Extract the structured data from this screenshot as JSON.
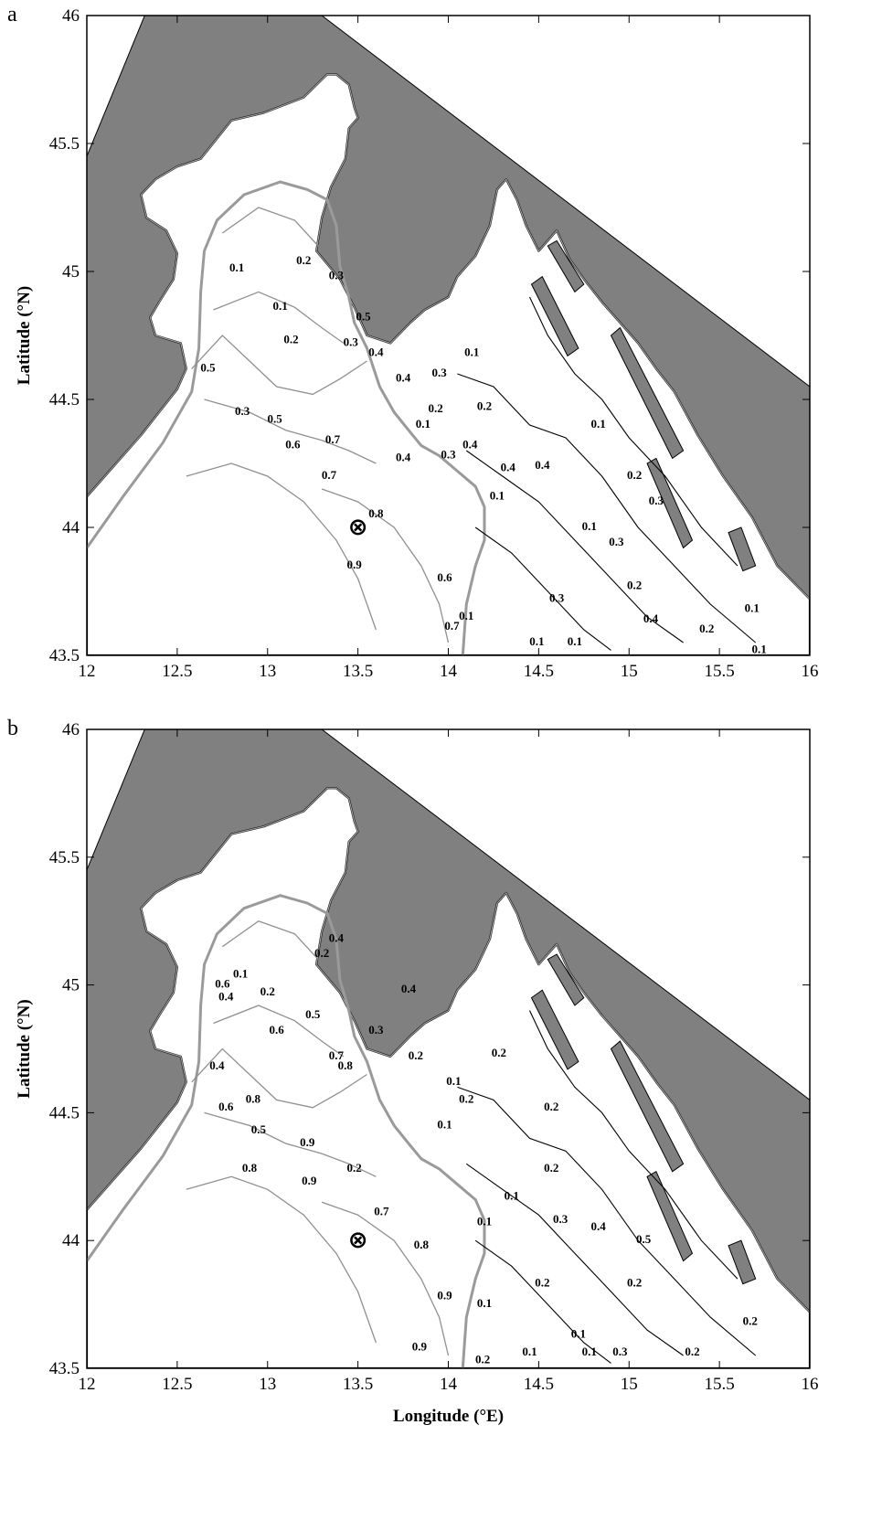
{
  "figure": {
    "panels": [
      {
        "letter": "a",
        "xlabel": "",
        "ylabel": "Latitude (°N)",
        "contour_labels": [
          {
            "text": "0.1",
            "lon": 12.83,
            "lat": 45.01
          },
          {
            "text": "0.1",
            "lon": 13.07,
            "lat": 44.86
          },
          {
            "text": "0.2",
            "lon": 13.2,
            "lat": 45.04
          },
          {
            "text": "0.2",
            "lon": 13.13,
            "lat": 44.73
          },
          {
            "text": "0.3",
            "lon": 13.46,
            "lat": 44.72
          },
          {
            "text": "0.4",
            "lon": 13.6,
            "lat": 44.68
          },
          {
            "text": "0.5",
            "lon": 13.53,
            "lat": 44.82
          },
          {
            "text": "0.3",
            "lon": 13.38,
            "lat": 44.98
          },
          {
            "text": "0.5",
            "lon": 12.67,
            "lat": 44.62
          },
          {
            "text": "0.3",
            "lon": 12.86,
            "lat": 44.45
          },
          {
            "text": "0.5",
            "lon": 13.04,
            "lat": 44.42
          },
          {
            "text": "0.6",
            "lon": 13.14,
            "lat": 44.32
          },
          {
            "text": "0.7",
            "lon": 13.36,
            "lat": 44.34
          },
          {
            "text": "0.7",
            "lon": 13.34,
            "lat": 44.2
          },
          {
            "text": "0.8",
            "lon": 13.6,
            "lat": 44.05
          },
          {
            "text": "0.9",
            "lon": 13.48,
            "lat": 43.85
          },
          {
            "text": "0.6",
            "lon": 13.98,
            "lat": 43.8
          },
          {
            "text": "0.7",
            "lon": 14.02,
            "lat": 43.61
          },
          {
            "text": "0.4",
            "lon": 13.75,
            "lat": 44.58
          },
          {
            "text": "0.2",
            "lon": 13.93,
            "lat": 44.46
          },
          {
            "text": "0.1",
            "lon": 13.86,
            "lat": 44.4
          },
          {
            "text": "0.3",
            "lon": 13.95,
            "lat": 44.6
          },
          {
            "text": "0.1",
            "lon": 14.13,
            "lat": 44.68
          },
          {
            "text": "0.2",
            "lon": 14.2,
            "lat": 44.47
          },
          {
            "text": "0.4",
            "lon": 14.12,
            "lat": 44.32
          },
          {
            "text": "0.3",
            "lon": 14.0,
            "lat": 44.28
          },
          {
            "text": "0.4",
            "lon": 13.75,
            "lat": 44.27
          },
          {
            "text": "0.1",
            "lon": 14.27,
            "lat": 44.12
          },
          {
            "text": "0.4",
            "lon": 14.33,
            "lat": 44.23
          },
          {
            "text": "0.4",
            "lon": 14.52,
            "lat": 44.24
          },
          {
            "text": "0.1",
            "lon": 14.83,
            "lat": 44.4
          },
          {
            "text": "0.2",
            "lon": 15.03,
            "lat": 44.2
          },
          {
            "text": "0.3",
            "lon": 15.15,
            "lat": 44.1
          },
          {
            "text": "0.1",
            "lon": 14.78,
            "lat": 44.0
          },
          {
            "text": "0.3",
            "lon": 14.93,
            "lat": 43.94
          },
          {
            "text": "0.2",
            "lon": 15.03,
            "lat": 43.77
          },
          {
            "text": "0.3",
            "lon": 14.6,
            "lat": 43.72
          },
          {
            "text": "0.1",
            "lon": 14.1,
            "lat": 43.65
          },
          {
            "text": "0.1",
            "lon": 14.49,
            "lat": 43.55
          },
          {
            "text": "0.1",
            "lon": 14.7,
            "lat": 43.55
          },
          {
            "text": "0.4",
            "lon": 15.12,
            "lat": 43.64
          },
          {
            "text": "0.2",
            "lon": 15.43,
            "lat": 43.6
          },
          {
            "text": "0.1",
            "lon": 15.68,
            "lat": 43.68
          },
          {
            "text": "0.1",
            "lon": 15.72,
            "lat": 43.52
          }
        ]
      },
      {
        "letter": "b",
        "xlabel": "Longitude (°E)",
        "ylabel": "Latitude (°N)",
        "contour_labels": [
          {
            "text": "0.2",
            "lon": 13.3,
            "lat": 45.12
          },
          {
            "text": "0.4",
            "lon": 13.38,
            "lat": 45.18
          },
          {
            "text": "0.1",
            "lon": 12.85,
            "lat": 45.04
          },
          {
            "text": "0.6",
            "lon": 12.75,
            "lat": 45.0
          },
          {
            "text": "0.4",
            "lon": 12.77,
            "lat": 44.95
          },
          {
            "text": "0.2",
            "lon": 13.0,
            "lat": 44.97
          },
          {
            "text": "0.5",
            "lon": 13.25,
            "lat": 44.88
          },
          {
            "text": "0.6",
            "lon": 13.05,
            "lat": 44.82
          },
          {
            "text": "0.4",
            "lon": 13.78,
            "lat": 44.98
          },
          {
            "text": "0.3",
            "lon": 13.6,
            "lat": 44.82
          },
          {
            "text": "0.2",
            "lon": 13.82,
            "lat": 44.72
          },
          {
            "text": "0.1",
            "lon": 14.03,
            "lat": 44.62
          },
          {
            "text": "0.2",
            "lon": 14.1,
            "lat": 44.55
          },
          {
            "text": "0.2",
            "lon": 14.28,
            "lat": 44.73
          },
          {
            "text": "0.7",
            "lon": 13.38,
            "lat": 44.72
          },
          {
            "text": "0.8",
            "lon": 13.43,
            "lat": 44.68
          },
          {
            "text": "0.8",
            "lon": 12.92,
            "lat": 44.55
          },
          {
            "text": "0.6",
            "lon": 12.77,
            "lat": 44.52
          },
          {
            "text": "0.4",
            "lon": 12.72,
            "lat": 44.68
          },
          {
            "text": "0.5",
            "lon": 12.95,
            "lat": 44.43
          },
          {
            "text": "0.9",
            "lon": 13.22,
            "lat": 44.38
          },
          {
            "text": "0.8",
            "lon": 12.9,
            "lat": 44.28
          },
          {
            "text": "0.9",
            "lon": 13.23,
            "lat": 44.23
          },
          {
            "text": "0.7",
            "lon": 13.63,
            "lat": 44.11
          },
          {
            "text": "0.8",
            "lon": 13.85,
            "lat": 43.98
          },
          {
            "text": "0.9",
            "lon": 13.98,
            "lat": 43.78
          },
          {
            "text": "0.9",
            "lon": 13.84,
            "lat": 43.58
          },
          {
            "text": "0.2",
            "lon": 13.48,
            "lat": 44.28
          },
          {
            "text": "0.1",
            "lon": 13.98,
            "lat": 44.45
          },
          {
            "text": "0.2",
            "lon": 14.57,
            "lat": 44.52
          },
          {
            "text": "0.2",
            "lon": 14.57,
            "lat": 44.28
          },
          {
            "text": "0.1",
            "lon": 14.35,
            "lat": 44.17
          },
          {
            "text": "0.1",
            "lon": 14.2,
            "lat": 44.07
          },
          {
            "text": "0.3",
            "lon": 14.62,
            "lat": 44.08
          },
          {
            "text": "0.4",
            "lon": 14.83,
            "lat": 44.05
          },
          {
            "text": "0.5",
            "lon": 15.08,
            "lat": 44.0
          },
          {
            "text": "0.2",
            "lon": 14.52,
            "lat": 43.83
          },
          {
            "text": "0.1",
            "lon": 14.2,
            "lat": 43.75
          },
          {
            "text": "0.2",
            "lon": 15.03,
            "lat": 43.83
          },
          {
            "text": "0.1",
            "lon": 14.72,
            "lat": 43.63
          },
          {
            "text": "0.1",
            "lon": 14.45,
            "lat": 43.56
          },
          {
            "text": "0.1",
            "lon": 14.78,
            "lat": 43.56
          },
          {
            "text": "0.2",
            "lon": 14.19,
            "lat": 43.53
          },
          {
            "text": "0.3",
            "lon": 14.95,
            "lat": 43.56
          },
          {
            "text": "0.2",
            "lon": 15.35,
            "lat": 43.56
          },
          {
            "text": "0.2",
            "lon": 15.67,
            "lat": 43.68
          }
        ]
      }
    ],
    "x_ticks": [
      "12",
      "12.5",
      "13",
      "13.5",
      "14",
      "14.5",
      "15",
      "15.5",
      "16"
    ],
    "y_ticks": [
      "43.5",
      "44",
      "44.5",
      "45",
      "45.5",
      "46"
    ],
    "x_range": [
      12,
      16
    ],
    "y_range": [
      43.5,
      46
    ],
    "marker": {
      "symbol": "⊗",
      "lon": 13.5,
      "lat": 44.0
    },
    "colors": {
      "land": "#808080",
      "contour_dark": "#000000",
      "contour_light": "#909090",
      "coast_outline": "#000000"
    }
  }
}
